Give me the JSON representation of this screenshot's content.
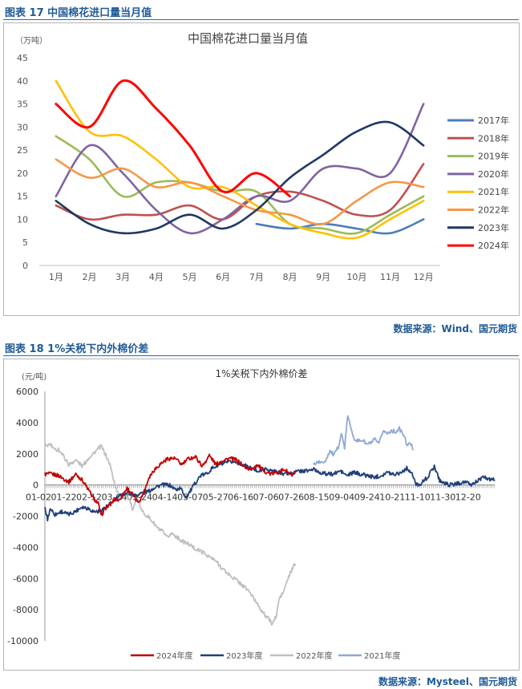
{
  "figure1": {
    "caption": "图表 17  中国棉花进口量当月值",
    "source": "数据来源：Wind、国元期货",
    "chart_data": {
      "type": "line",
      "title": "中国棉花进口量当月值",
      "unit": "（万吨）",
      "categories": [
        "1月",
        "2月",
        "3月",
        "4月",
        "5月",
        "6月",
        "7月",
        "8月",
        "9月",
        "10月",
        "11月",
        "12月"
      ],
      "ylim": [
        0,
        45
      ],
      "yticks": [
        0,
        5,
        10,
        15,
        20,
        25,
        30,
        35,
        40,
        45
      ],
      "legend_position": "right",
      "series": [
        {
          "name": "2017年",
          "color": "#4a7ebb",
          "values": [
            null,
            null,
            null,
            null,
            null,
            null,
            9,
            8,
            9,
            8,
            7,
            10
          ]
        },
        {
          "name": "2018年",
          "color": "#c0504d",
          "values": [
            13,
            10,
            11,
            11,
            13,
            10,
            15,
            16,
            14,
            11,
            12,
            22
          ]
        },
        {
          "name": "2019年",
          "color": "#9bbb59",
          "values": [
            28,
            23,
            15,
            18,
            18,
            16,
            16,
            9,
            8,
            7,
            11,
            15
          ]
        },
        {
          "name": "2020年",
          "color": "#8064a2",
          "values": [
            15,
            26,
            20,
            12,
            7,
            10,
            15,
            14,
            21,
            21,
            20,
            35
          ]
        },
        {
          "name": "2021年",
          "color": "#ffc000",
          "values": [
            40,
            29,
            28,
            23,
            17,
            17,
            13,
            9,
            7,
            6,
            10,
            14
          ]
        },
        {
          "name": "2022年",
          "color": "#f79646",
          "values": [
            23,
            19,
            21,
            17,
            18,
            15,
            12,
            11,
            9,
            14,
            18,
            17
          ]
        },
        {
          "name": "2023年",
          "color": "#1f3864",
          "values": [
            14,
            9,
            7,
            8,
            11,
            8,
            12,
            19,
            24,
            29,
            31,
            26
          ]
        },
        {
          "name": "2024年",
          "color": "#ff0000",
          "values": [
            35,
            30,
            40,
            34,
            26,
            16,
            20,
            15,
            null,
            null,
            null,
            null
          ]
        }
      ]
    }
  },
  "figure2": {
    "caption": "图表 18  1%关税下内外棉价差",
    "source": "数据来源：Mysteel、国元期货",
    "chart_data": {
      "type": "line",
      "title": "1%关税下内外棉价差",
      "unit": "(元/吨)",
      "ylim": [
        -10000,
        6000
      ],
      "yticks": [
        -10000,
        -8000,
        -6000,
        -4000,
        -2000,
        0,
        2000,
        4000,
        6000
      ],
      "xticks": [
        "01-02",
        "01-22",
        "02-12",
        "03-04",
        "03-24",
        "04-14",
        "05-07",
        "05-27",
        "06-16",
        "07-06",
        "07-26",
        "08-15",
        "09-04",
        "09-24",
        "10-21",
        "11-10",
        "11-30",
        "12-20"
      ],
      "legend_position": "bottom",
      "series": [
        {
          "name": "2024年度",
          "color": "#c00000",
          "anchors": [
            [
              0,
              700
            ],
            [
              10,
              700
            ],
            [
              20,
              600
            ],
            [
              35,
              200
            ],
            [
              45,
              700
            ],
            [
              55,
              300
            ],
            [
              62,
              -200
            ],
            [
              70,
              -800
            ],
            [
              78,
              -1200
            ],
            [
              82,
              -2000
            ],
            [
              88,
              -1500
            ],
            [
              95,
              -1300
            ],
            [
              102,
              -900
            ],
            [
              108,
              -1000
            ],
            [
              114,
              -600
            ],
            [
              120,
              -200
            ],
            [
              128,
              -600
            ],
            [
              135,
              -1100
            ],
            [
              140,
              -900
            ],
            [
              146,
              -300
            ],
            [
              152,
              500
            ],
            [
              160,
              1000
            ],
            [
              170,
              1400
            ],
            [
              180,
              1700
            ],
            [
              190,
              1700
            ],
            [
              200,
              1300
            ],
            [
              210,
              1700
            ],
            [
              220,
              1800
            ],
            [
              230,
              1200
            ],
            [
              240,
              1900
            ],
            [
              250,
              1300
            ],
            [
              260,
              1600
            ],
            [
              270,
              1700
            ],
            [
              280,
              1600
            ],
            [
              290,
              1200
            ],
            [
              300,
              1000
            ],
            [
              310,
              1300
            ],
            [
              320,
              900
            ],
            [
              330,
              700
            ],
            [
              340,
              800
            ],
            [
              350,
              1000
            ],
            [
              360,
              600
            ],
            [
              366,
              800
            ]
          ]
        },
        {
          "name": "2023年度",
          "color": "#1f3f7a",
          "anchors": [
            [
              0,
              -1500
            ],
            [
              4,
              -2200
            ],
            [
              8,
              -1500
            ],
            [
              15,
              -1900
            ],
            [
              25,
              -1700
            ],
            [
              35,
              -1900
            ],
            [
              45,
              -1700
            ],
            [
              55,
              -1400
            ],
            [
              65,
              -1500
            ],
            [
              72,
              -1700
            ],
            [
              80,
              -1700
            ],
            [
              88,
              -1500
            ],
            [
              95,
              -1300
            ],
            [
              105,
              -900
            ],
            [
              115,
              -600
            ],
            [
              125,
              -500
            ],
            [
              135,
              -700
            ],
            [
              145,
              -500
            ],
            [
              155,
              -400
            ],
            [
              165,
              -100
            ],
            [
              175,
              0
            ],
            [
              185,
              0
            ],
            [
              195,
              -300
            ],
            [
              202,
              -200
            ],
            [
              210,
              -800
            ],
            [
              218,
              -300
            ],
            [
              225,
              200
            ],
            [
              232,
              600
            ],
            [
              240,
              700
            ],
            [
              250,
              1100
            ],
            [
              260,
              1300
            ],
            [
              270,
              1400
            ],
            [
              280,
              1500
            ],
            [
              290,
              1400
            ],
            [
              300,
              1200
            ],
            [
              310,
              1000
            ],
            [
              320,
              900
            ],
            [
              330,
              1000
            ],
            [
              340,
              900
            ],
            [
              350,
              800
            ],
            [
              360,
              700
            ],
            [
              370,
              800
            ],
            [
              380,
              900
            ],
            [
              390,
              900
            ],
            [
              400,
              1000
            ],
            [
              410,
              800
            ],
            [
              420,
              700
            ],
            [
              430,
              700
            ],
            [
              440,
              900
            ],
            [
              450,
              600
            ],
            [
              460,
              800
            ],
            [
              470,
              700
            ],
            [
              480,
              600
            ],
            [
              490,
              500
            ],
            [
              500,
              600
            ],
            [
              510,
              800
            ],
            [
              520,
              700
            ],
            [
              530,
              800
            ],
            [
              540,
              1100
            ],
            [
              548,
              600
            ],
            [
              553,
              0
            ],
            [
              560,
              100
            ],
            [
              570,
              500
            ],
            [
              580,
              1200
            ],
            [
              588,
              300
            ],
            [
              595,
              100
            ],
            [
              605,
              0
            ],
            [
              615,
              100
            ],
            [
              625,
              200
            ],
            [
              635,
              0
            ],
            [
              645,
              300
            ],
            [
              655,
              500
            ],
            [
              665,
              300
            ],
            [
              670,
              400
            ]
          ]
        },
        {
          "name": "2022年度",
          "color": "#bfbfbf",
          "anchors": [
            [
              0,
              2500
            ],
            [
              8,
              2600
            ],
            [
              15,
              2200
            ],
            [
              20,
              2300
            ],
            [
              28,
              1800
            ],
            [
              35,
              1300
            ],
            [
              45,
              1600
            ],
            [
              55,
              1200
            ],
            [
              65,
              1800
            ],
            [
              75,
              2200
            ],
            [
              82,
              2500
            ],
            [
              88,
              2000
            ],
            [
              95,
              1300
            ],
            [
              100,
              400
            ],
            [
              105,
              -400
            ],
            [
              110,
              -800
            ],
            [
              116,
              -400
            ],
            [
              122,
              -900
            ],
            [
              128,
              -1500
            ],
            [
              135,
              -900
            ],
            [
              142,
              -1700
            ],
            [
              150,
              -2000
            ],
            [
              158,
              -2400
            ],
            [
              165,
              -2800
            ],
            [
              172,
              -3000
            ],
            [
              178,
              -3400
            ],
            [
              185,
              -3100
            ],
            [
              192,
              -3300
            ],
            [
              200,
              -3600
            ],
            [
              210,
              -3800
            ],
            [
              220,
              -4100
            ],
            [
              230,
              -4300
            ],
            [
              240,
              -4600
            ],
            [
              250,
              -4900
            ],
            [
              260,
              -5400
            ],
            [
              270,
              -5800
            ],
            [
              280,
              -6100
            ],
            [
              290,
              -6500
            ],
            [
              298,
              -6800
            ],
            [
              305,
              -7300
            ],
            [
              312,
              -7700
            ],
            [
              318,
              -8200
            ],
            [
              325,
              -8500
            ],
            [
              332,
              -8900
            ],
            [
              338,
              -8400
            ],
            [
              342,
              -7300
            ],
            [
              348,
              -6900
            ],
            [
              355,
              -6000
            ],
            [
              360,
              -5500
            ],
            [
              366,
              -5000
            ]
          ]
        },
        {
          "name": "2021年度",
          "color": "#8ea9d3",
          "anchors": [
            [
              0,
              1300
            ],
            [
              5,
              1500
            ],
            [
              10,
              1400
            ],
            [
              15,
              1600
            ],
            [
              20,
              2200
            ],
            [
              25,
              1900
            ],
            [
              30,
              2400
            ],
            [
              34,
              3300
            ],
            [
              38,
              2400
            ],
            [
              42,
              4500
            ],
            [
              46,
              3500
            ],
            [
              50,
              3000
            ],
            [
              55,
              2800
            ],
            [
              60,
              2900
            ],
            [
              65,
              2600
            ],
            [
              70,
              2700
            ],
            [
              75,
              2900
            ],
            [
              80,
              2600
            ],
            [
              85,
              3500
            ],
            [
              90,
              3300
            ],
            [
              95,
              3500
            ],
            [
              100,
              3400
            ],
            [
              105,
              3600
            ],
            [
              110,
              3200
            ],
            [
              115,
              2500
            ],
            [
              118,
              2700
            ],
            [
              122,
              2300
            ]
          ]
        }
      ]
    }
  }
}
